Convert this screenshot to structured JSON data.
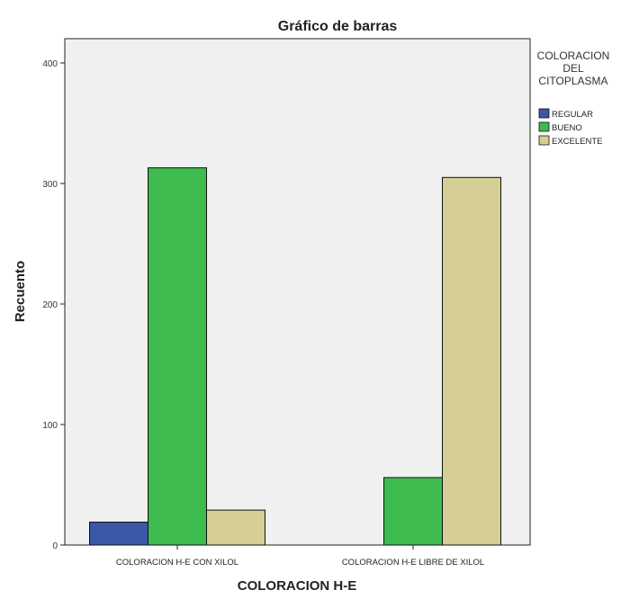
{
  "chart_data": {
    "type": "bar",
    "title": "Gráfico de barras",
    "xlabel": "COLORACION H-E",
    "ylabel": "Recuento",
    "categories": [
      "COLORACION H-E CON XILOL",
      "COLORACION H-E LIBRE DE XILOL"
    ],
    "series": [
      {
        "name": "REGULAR",
        "color": "#3a57a8",
        "values": [
          19,
          0
        ]
      },
      {
        "name": "BUENO",
        "color": "#3dbb4f",
        "values": [
          313,
          56
        ]
      },
      {
        "name": "EXCELENTE",
        "color": "#d6cf95",
        "values": [
          29,
          305
        ]
      }
    ],
    "ylim": [
      0,
      400
    ],
    "yticks": [
      0,
      100,
      200,
      300,
      400
    ],
    "legend": {
      "title_lines": [
        "COLORACION",
        "DEL",
        "CITOPLASMA"
      ],
      "placement": "right"
    },
    "grid": false,
    "plot_background": "#f0f0f0"
  }
}
